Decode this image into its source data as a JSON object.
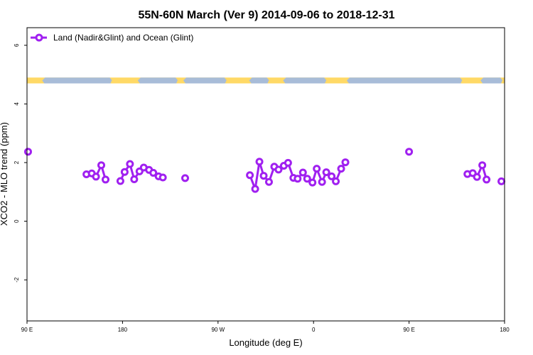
{
  "chart_data": {
    "type": "line",
    "title": "55N-60N March (Ver 9)   2014-09-06 to 2018-12-31",
    "xlabel": "Longitude (deg E)",
    "ylabel": "XCO2 - MLO trend (ppm)",
    "xlim": [
      90,
      540
    ],
    "ylim": [
      -3.4,
      6.6
    ],
    "y_ticks": [
      -2,
      0,
      2,
      4,
      6
    ],
    "y_tick_labels": [
      "-2",
      "0",
      "2",
      "4",
      "6"
    ],
    "x_ticks": [
      90,
      180,
      270,
      360,
      450,
      540
    ],
    "x_tick_labels": [
      "90 E",
      "180",
      "90 W",
      "0",
      "90 E",
      "180"
    ],
    "legend": {
      "label": "Land (Nadir&Glint) and Ocean (Glint)",
      "position": "top-left"
    },
    "series_color": "#a020f0",
    "land_color": "#ffd966",
    "ocean_color": "#a8bcd8",
    "map_strip_y": [
      4.7,
      4.9
    ],
    "series": [
      {
        "name": "Land (Nadir&Glint) and Ocean (Glint)",
        "points": [
          {
            "x": 91,
            "y": 2.37
          }
        ]
      },
      {
        "name": "Land (Nadir&Glint) and Ocean (Glint)",
        "points": [
          {
            "x": 146,
            "y": 1.6
          },
          {
            "x": 151,
            "y": 1.63
          },
          {
            "x": 155,
            "y": 1.52
          },
          {
            "x": 160,
            "y": 1.91
          },
          {
            "x": 164,
            "y": 1.42
          }
        ]
      },
      {
        "name": "Land (Nadir&Glint) and Ocean (Glint)",
        "points": [
          {
            "x": 178,
            "y": 1.37
          },
          {
            "x": 182,
            "y": 1.68
          },
          {
            "x": 187,
            "y": 1.95
          },
          {
            "x": 191,
            "y": 1.43
          },
          {
            "x": 196,
            "y": 1.7
          },
          {
            "x": 200,
            "y": 1.83
          },
          {
            "x": 205,
            "y": 1.75
          },
          {
            "x": 209,
            "y": 1.65
          },
          {
            "x": 214,
            "y": 1.53
          },
          {
            "x": 218,
            "y": 1.49
          }
        ]
      },
      {
        "name": "Land (Nadir&Glint) and Ocean (Glint)",
        "points": [
          {
            "x": 239,
            "y": 1.47
          }
        ]
      },
      {
        "name": "Land (Nadir&Glint) and Ocean (Glint)",
        "points": [
          {
            "x": 300,
            "y": 1.57
          },
          {
            "x": 305,
            "y": 1.1
          },
          {
            "x": 309,
            "y": 2.03
          },
          {
            "x": 313,
            "y": 1.55
          },
          {
            "x": 318,
            "y": 1.34
          },
          {
            "x": 323,
            "y": 1.86
          },
          {
            "x": 327,
            "y": 1.76
          },
          {
            "x": 332,
            "y": 1.89
          },
          {
            "x": 336,
            "y": 1.99
          },
          {
            "x": 341,
            "y": 1.48
          },
          {
            "x": 345,
            "y": 1.45
          },
          {
            "x": 350,
            "y": 1.66
          },
          {
            "x": 354,
            "y": 1.45
          },
          {
            "x": 359,
            "y": 1.32
          },
          {
            "x": 363,
            "y": 1.79
          },
          {
            "x": 368,
            "y": 1.34
          },
          {
            "x": 372,
            "y": 1.67
          },
          {
            "x": 377,
            "y": 1.53
          },
          {
            "x": 381,
            "y": 1.36
          },
          {
            "x": 386,
            "y": 1.79
          },
          {
            "x": 390,
            "y": 2.01
          }
        ]
      },
      {
        "name": "Land (Nadir&Glint) and Ocean (Glint)",
        "points": [
          {
            "x": 450,
            "y": 2.37
          }
        ]
      },
      {
        "name": "Land (Nadir&Glint) and Ocean (Glint)",
        "points": [
          {
            "x": 505,
            "y": 1.61
          },
          {
            "x": 510,
            "y": 1.64
          },
          {
            "x": 514,
            "y": 1.51
          },
          {
            "x": 519,
            "y": 1.91
          },
          {
            "x": 523,
            "y": 1.42
          }
        ]
      },
      {
        "name": "Land (Nadir&Glint) and Ocean (Glint)",
        "points": [
          {
            "x": 537,
            "y": 1.36
          }
        ]
      }
    ]
  }
}
